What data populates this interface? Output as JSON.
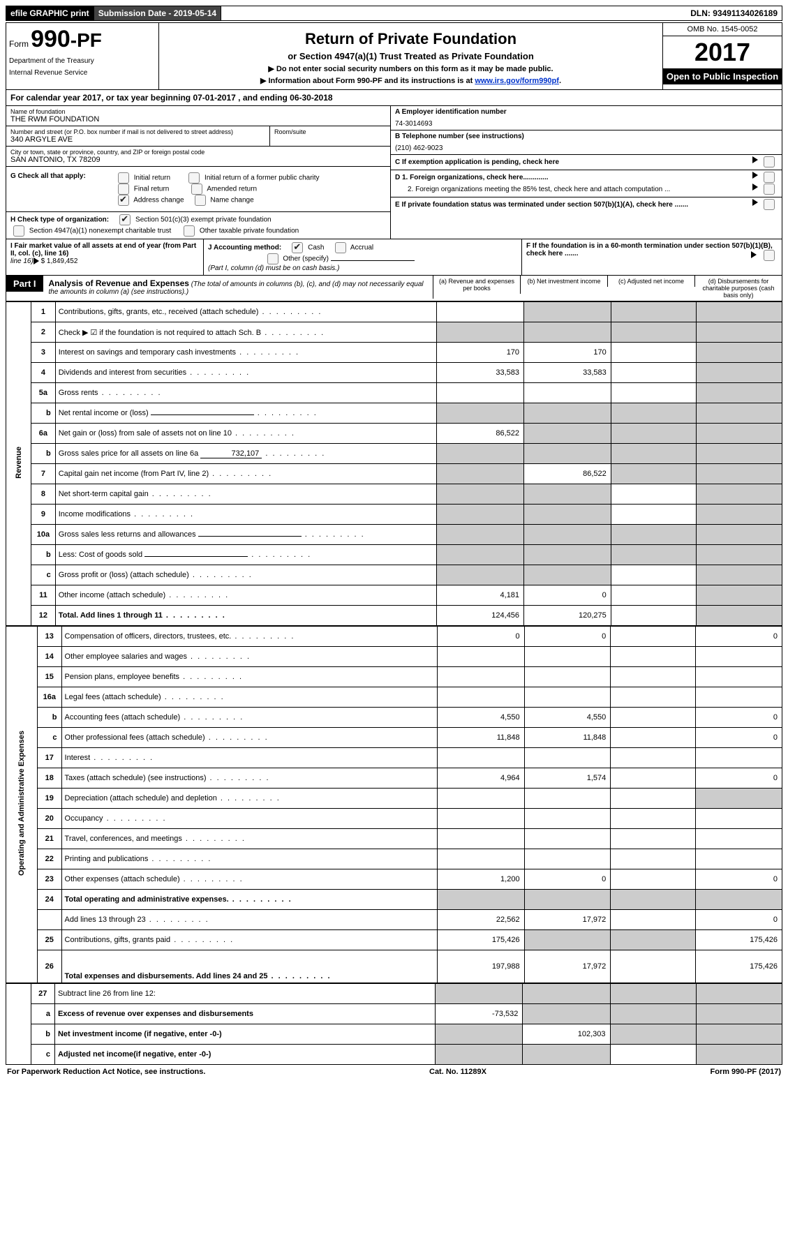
{
  "top": {
    "efile": "efile GRAPHIC print",
    "submission": "Submission Date - 2019-05-14",
    "dln": "DLN: 93491134026189"
  },
  "header": {
    "form_prefix": "Form",
    "form_num": "990-PF",
    "dept1": "Department of the Treasury",
    "dept2": "Internal Revenue Service",
    "title": "Return of Private Foundation",
    "subtitle": "or Section 4947(a)(1) Trust Treated as Private Foundation",
    "note1": "▶ Do not enter social security numbers on this form as it may be made public.",
    "note2_pre": "▶ Information about Form 990-PF and its instructions is at ",
    "note2_link": "www.irs.gov/form990pf",
    "omb": "OMB No. 1545-0052",
    "year": "2017",
    "open": "Open to Public Inspection"
  },
  "calyear": "For calendar year 2017, or tax year beginning 07-01-2017                           , and ending 06-30-2018",
  "id": {
    "name_lbl": "Name of foundation",
    "name": "THE RWM FOUNDATION",
    "addr_lbl": "Number and street (or P.O. box number if mail is not delivered to street address)",
    "addr": "340 ARGYLE AVE",
    "room_lbl": "Room/suite",
    "city_lbl": "City or town, state or province, country, and ZIP or foreign postal code",
    "city": "SAN ANTONIO, TX  78209",
    "a_lbl": "A Employer identification number",
    "a_val": "74-3014693",
    "b_lbl": "B Telephone number (see instructions)",
    "b_val": "(210) 462-9023",
    "c_lbl": "C  If exemption application is pending, check here",
    "d1": "D 1. Foreign organizations, check here.............",
    "d2": "2. Foreign organizations meeting the 85% test, check here and attach computation ...",
    "e": "E  If private foundation status was terminated under section 507(b)(1)(A), check here .......",
    "f": "F  If the foundation is in a 60-month termination under section 507(b)(1)(B), check here ......."
  },
  "g": {
    "label": "G Check all that apply:",
    "opts": [
      "Initial return",
      "Initial return of a former public charity",
      "Final return",
      "Amended return",
      "Address change",
      "Name change"
    ]
  },
  "h": {
    "label": "H Check type of organization:",
    "o1": "Section 501(c)(3) exempt private foundation",
    "o2": "Section 4947(a)(1) nonexempt charitable trust",
    "o3": "Other taxable private foundation"
  },
  "i": {
    "label": "I Fair market value of all assets at end of year (from Part II, col. (c), line 16)",
    "val": "$  1,849,452"
  },
  "j": {
    "label": "J Accounting method:",
    "o1": "Cash",
    "o2": "Accrual",
    "o3": "Other (specify)",
    "note": "(Part I, column (d) must be on cash basis.)"
  },
  "part1": {
    "label": "Part I",
    "title": "Analysis of Revenue and Expenses",
    "desc": "(The total of amounts in columns (b), (c), and (d) may not necessarily equal the amounts in column (a) (see instructions).)",
    "cols": [
      "(a)    Revenue and expenses per books",
      "(b)    Net investment income",
      "(c)    Adjusted net income",
      "(d)    Disbursements for charitable purposes (cash basis only)"
    ]
  },
  "vert": {
    "rev": "Revenue",
    "exp": "Operating and Administrative Expenses"
  },
  "rows": [
    {
      "n": "1",
      "d": "Contributions, gifts, grants, etc., received (attach schedule)",
      "a": "",
      "b": "g",
      "c": "g",
      "dd": "g"
    },
    {
      "n": "2",
      "d": "Check ▶ ☑ if the foundation is not required to attach Sch. B",
      "a": "g",
      "b": "g",
      "c": "g",
      "dd": "g"
    },
    {
      "n": "3",
      "d": "Interest on savings and temporary cash investments",
      "a": "170",
      "b": "170",
      "c": "",
      "dd": "g"
    },
    {
      "n": "4",
      "d": "Dividends and interest from securities",
      "a": "33,583",
      "b": "33,583",
      "c": "",
      "dd": "g"
    },
    {
      "n": "5a",
      "d": "Gross rents",
      "a": "",
      "b": "",
      "c": "",
      "dd": "g"
    },
    {
      "n": "b",
      "d": "Net rental income or (loss)",
      "a": "g",
      "b": "g",
      "c": "g",
      "dd": "g",
      "sub": true,
      "inline": true
    },
    {
      "n": "6a",
      "d": "Net gain or (loss) from sale of assets not on line 10",
      "a": "86,522",
      "b": "g",
      "c": "g",
      "dd": "g"
    },
    {
      "n": "b",
      "d": "Gross sales price for all assets on line 6a",
      "a": "g",
      "b": "g",
      "c": "g",
      "dd": "g",
      "sub": true,
      "val": "732,107"
    },
    {
      "n": "7",
      "d": "Capital gain net income (from Part IV, line 2)",
      "a": "g",
      "b": "86,522",
      "c": "g",
      "dd": "g"
    },
    {
      "n": "8",
      "d": "Net short-term capital gain",
      "a": "g",
      "b": "g",
      "c": "",
      "dd": "g"
    },
    {
      "n": "9",
      "d": "Income modifications",
      "a": "g",
      "b": "g",
      "c": "",
      "dd": "g"
    },
    {
      "n": "10a",
      "d": "Gross sales less returns and allowances",
      "a": "g",
      "b": "g",
      "c": "g",
      "dd": "g",
      "inline": true
    },
    {
      "n": "b",
      "d": "Less: Cost of goods sold",
      "a": "g",
      "b": "g",
      "c": "g",
      "dd": "g",
      "sub": true,
      "inline": true
    },
    {
      "n": "c",
      "d": "Gross profit or (loss) (attach schedule)",
      "a": "g",
      "b": "g",
      "c": "",
      "dd": "g",
      "sub": true
    },
    {
      "n": "11",
      "d": "Other income (attach schedule)",
      "a": "4,181",
      "b": "0",
      "c": "",
      "dd": "g"
    },
    {
      "n": "12",
      "d": "Total. Add lines 1 through 11",
      "a": "124,456",
      "b": "120,275",
      "c": "",
      "dd": "g",
      "bold": true
    }
  ],
  "exp_rows": [
    {
      "n": "13",
      "d": "Compensation of officers, directors, trustees, etc.",
      "a": "0",
      "b": "0",
      "c": "",
      "dd": "0"
    },
    {
      "n": "14",
      "d": "Other employee salaries and wages",
      "a": "",
      "b": "",
      "c": "",
      "dd": ""
    },
    {
      "n": "15",
      "d": "Pension plans, employee benefits",
      "a": "",
      "b": "",
      "c": "",
      "dd": ""
    },
    {
      "n": "16a",
      "d": "Legal fees (attach schedule)",
      "a": "",
      "b": "",
      "c": "",
      "dd": ""
    },
    {
      "n": "b",
      "d": "Accounting fees (attach schedule)",
      "a": "4,550",
      "b": "4,550",
      "c": "",
      "dd": "0",
      "sub": true
    },
    {
      "n": "c",
      "d": "Other professional fees (attach schedule)",
      "a": "11,848",
      "b": "11,848",
      "c": "",
      "dd": "0",
      "sub": true
    },
    {
      "n": "17",
      "d": "Interest",
      "a": "",
      "b": "",
      "c": "",
      "dd": ""
    },
    {
      "n": "18",
      "d": "Taxes (attach schedule) (see instructions)",
      "a": "4,964",
      "b": "1,574",
      "c": "",
      "dd": "0"
    },
    {
      "n": "19",
      "d": "Depreciation (attach schedule) and depletion",
      "a": "",
      "b": "",
      "c": "",
      "dd": "g"
    },
    {
      "n": "20",
      "d": "Occupancy",
      "a": "",
      "b": "",
      "c": "",
      "dd": ""
    },
    {
      "n": "21",
      "d": "Travel, conferences, and meetings",
      "a": "",
      "b": "",
      "c": "",
      "dd": ""
    },
    {
      "n": "22",
      "d": "Printing and publications",
      "a": "",
      "b": "",
      "c": "",
      "dd": ""
    },
    {
      "n": "23",
      "d": "Other expenses (attach schedule)",
      "a": "1,200",
      "b": "0",
      "c": "",
      "dd": "0"
    },
    {
      "n": "24",
      "d": "Total operating and administrative expenses.",
      "a": "g",
      "b": "g",
      "c": "g",
      "dd": "g",
      "bold": true
    },
    {
      "n": "",
      "d": "Add lines 13 through 23",
      "a": "22,562",
      "b": "17,972",
      "c": "",
      "dd": "0"
    },
    {
      "n": "25",
      "d": "Contributions, gifts, grants paid",
      "a": "175,426",
      "b": "g",
      "c": "g",
      "dd": "175,426"
    },
    {
      "n": "26",
      "d": "Total expenses and disbursements. Add lines 24 and 25",
      "a": "197,988",
      "b": "17,972",
      "c": "",
      "dd": "175,426",
      "bold": true,
      "tall": true
    }
  ],
  "rows27": [
    {
      "n": "27",
      "d": "Subtract line 26 from line 12:",
      "a": "g",
      "b": "g",
      "c": "g",
      "dd": "g"
    },
    {
      "n": "a",
      "d": "Excess of revenue over expenses and disbursements",
      "a": "-73,532",
      "b": "g",
      "c": "g",
      "dd": "g",
      "bold": true,
      "sub": true
    },
    {
      "n": "b",
      "d": "Net investment income (if negative, enter -0-)",
      "a": "g",
      "b": "102,303",
      "c": "g",
      "dd": "g",
      "bold": true,
      "sub": true
    },
    {
      "n": "c",
      "d": "Adjusted net income(if negative, enter -0-)",
      "a": "g",
      "b": "g",
      "c": "",
      "dd": "g",
      "bold": true,
      "sub": true
    }
  ],
  "footer": {
    "left": "For Paperwork Reduction Act Notice, see instructions.",
    "mid": "Cat. No. 11289X",
    "right": "Form 990-PF (2017)"
  }
}
